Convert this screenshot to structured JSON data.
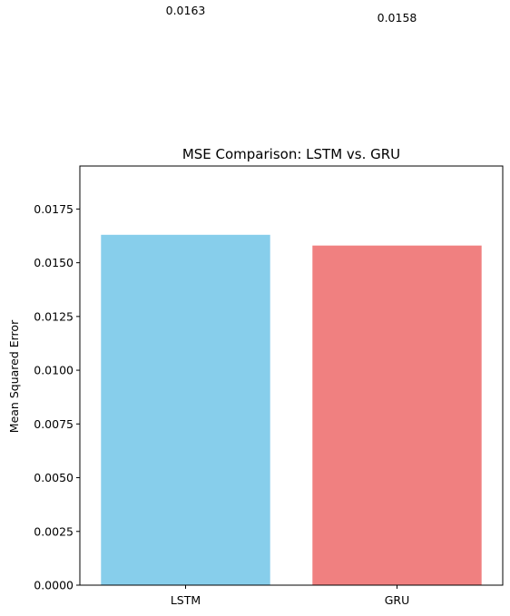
{
  "chart_data": {
    "type": "bar",
    "title": "MSE Comparison: LSTM vs. GRU",
    "xlabel": "",
    "ylabel": "Mean Squared Error",
    "categories": [
      "LSTM",
      "GRU"
    ],
    "values": [
      0.0163,
      0.0158
    ],
    "value_labels": [
      "0.0163",
      "0.0158"
    ],
    "bar_colors": [
      "#87ceeb",
      "#f08080"
    ],
    "ylim": [
      0,
      0.0195
    ],
    "yticks": [
      0,
      0.0025,
      0.005,
      0.0075,
      0.01,
      0.0125,
      0.015,
      0.0175
    ],
    "ytick_labels": [
      "0.0000",
      "0.0025",
      "0.0050",
      "0.0075",
      "0.0100",
      "0.0125",
      "0.0150",
      "0.0175"
    ],
    "grid": false,
    "legend": "none"
  }
}
